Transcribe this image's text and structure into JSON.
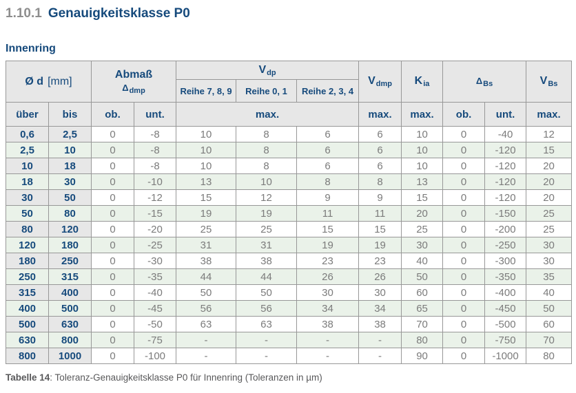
{
  "page": {
    "section_number": "1.10.1",
    "section_title": "Genauigkeitsklasse P0",
    "subtitle": "Innenring",
    "caption_label": "Tabelle 14",
    "caption_rest": ": Toleranz-Genauigkeitsklasse P0 für Innenring (Toleranzen in µm)"
  },
  "colors": {
    "accent_navy": "#164A7C",
    "section_number_gray": "#8E8E8E",
    "header_bg": "#E7E7E7",
    "row_alt_green": "#EAF2E9",
    "border_gray": "#979797",
    "value_text_gray": "#7B7B7B",
    "caption_gray": "#58585A"
  },
  "table": {
    "header": {
      "d_main": "Ø d",
      "d_unit": "[mm]",
      "abmass_line1": "Abmaß",
      "abmass_sym": "Δ",
      "abmass_sub": "dmp",
      "vdp_sym": "V",
      "vdp_sub": "dp",
      "vdmp_sym": "V",
      "vdmp_sub": "dmp",
      "kia_sym": "K",
      "kia_sub": "ia",
      "dbs_sym": "Δ",
      "dbs_sub": "Bs",
      "vbs_sym": "V",
      "vbs_sub": "Bs",
      "vdp_series": [
        "Reihe 7, 8, 9",
        "Reihe 0, 1",
        "Reihe 2, 3, 4"
      ],
      "sub_ueber": "über",
      "sub_bis": "bis",
      "sub_ob": "ob.",
      "sub_unt": "unt.",
      "sub_max": "max."
    },
    "rows": [
      [
        "0,6",
        "2,5",
        "0",
        "-8",
        "10",
        "8",
        "6",
        "6",
        "10",
        "0",
        "-40",
        "12"
      ],
      [
        "2,5",
        "10",
        "0",
        "-8",
        "10",
        "8",
        "6",
        "6",
        "10",
        "0",
        "-120",
        "15"
      ],
      [
        "10",
        "18",
        "0",
        "-8",
        "10",
        "8",
        "6",
        "6",
        "10",
        "0",
        "-120",
        "20"
      ],
      [
        "18",
        "30",
        "0",
        "-10",
        "13",
        "10",
        "8",
        "8",
        "13",
        "0",
        "-120",
        "20"
      ],
      [
        "30",
        "50",
        "0",
        "-12",
        "15",
        "12",
        "9",
        "9",
        "15",
        "0",
        "-120",
        "20"
      ],
      [
        "50",
        "80",
        "0",
        "-15",
        "19",
        "19",
        "11",
        "11",
        "20",
        "0",
        "-150",
        "25"
      ],
      [
        "80",
        "120",
        "0",
        "-20",
        "25",
        "25",
        "15",
        "15",
        "25",
        "0",
        "-200",
        "25"
      ],
      [
        "120",
        "180",
        "0",
        "-25",
        "31",
        "31",
        "19",
        "19",
        "30",
        "0",
        "-250",
        "30"
      ],
      [
        "180",
        "250",
        "0",
        "-30",
        "38",
        "38",
        "23",
        "23",
        "40",
        "0",
        "-300",
        "30"
      ],
      [
        "250",
        "315",
        "0",
        "-35",
        "44",
        "44",
        "26",
        "26",
        "50",
        "0",
        "-350",
        "35"
      ],
      [
        "315",
        "400",
        "0",
        "-40",
        "50",
        "50",
        "30",
        "30",
        "60",
        "0",
        "-400",
        "40"
      ],
      [
        "400",
        "500",
        "0",
        "-45",
        "56",
        "56",
        "34",
        "34",
        "65",
        "0",
        "-450",
        "50"
      ],
      [
        "500",
        "630",
        "0",
        "-50",
        "63",
        "63",
        "38",
        "38",
        "70",
        "0",
        "-500",
        "60"
      ],
      [
        "630",
        "800",
        "0",
        "-75",
        "-",
        "-",
        "-",
        "-",
        "80",
        "0",
        "-750",
        "70"
      ],
      [
        "800",
        "1000",
        "0",
        "-100",
        "-",
        "-",
        "-",
        "-",
        "90",
        "0",
        "-1000",
        "80"
      ]
    ]
  }
}
